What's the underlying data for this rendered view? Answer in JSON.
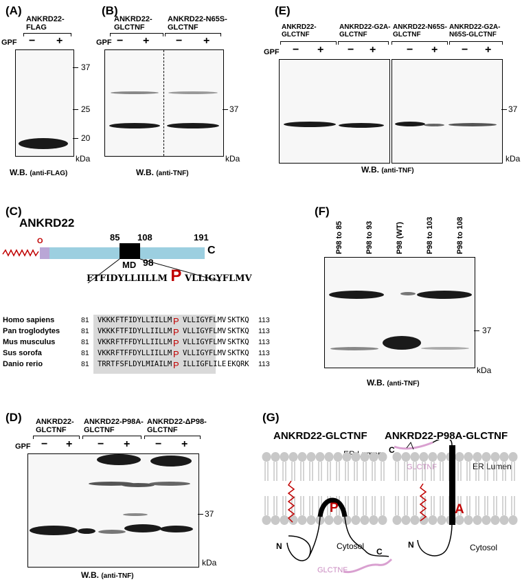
{
  "panels": {
    "A": {
      "label": "(A)",
      "header": [
        "ANKRD22-",
        "FLAG"
      ],
      "gpf": "GPF",
      "minus": "−",
      "plus": "+",
      "markers": [
        "37",
        "25",
        "20"
      ],
      "kda": "kDa",
      "wb": "W.B.",
      "wb_ab": "(anti-FLAG)"
    },
    "B": {
      "label": "(B)",
      "header1": [
        "ANKRD22-",
        "GLCTNF"
      ],
      "header2": [
        "ANKRD22-N65S-",
        "GLCTNF"
      ],
      "gpf": "GPF",
      "minus": "−",
      "plus": "+",
      "markers": [
        "37"
      ],
      "kda": "kDa",
      "wb": "W.B.",
      "wb_ab": "(anti-TNF)"
    },
    "C": {
      "label": "(C)",
      "protein": "ANKRD22",
      "pos85": "85",
      "pos108": "108",
      "pos191": "191",
      "cterm": "C",
      "md": "MD",
      "myr": "O",
      "p98": "98",
      "motif_left": "FTFIDYLLIILLM",
      "motif_p": "P",
      "motif_right": "VLLIGYFLMV",
      "rows": [
        {
          "species": "Homo sapiens",
          "start": "81",
          "pre": "VKKK",
          "mid": "FTFIDYLLIILLM",
          "p": "P",
          "post": "VLLIGYFLMV",
          "tail": "SKTKQ",
          "end": "113"
        },
        {
          "species": "Pan troglodytes",
          "start": "81",
          "pre": "VKKK",
          "mid": "FTFIDYLLIILLM",
          "p": "P",
          "post": "VLLIGYFLMV",
          "tail": "SKTKQ",
          "end": "113"
        },
        {
          "species": "Mus musculus",
          "start": "81",
          "pre": "VKKR",
          "mid": "FTFFDYLLIILLM",
          "p": "P",
          "post": "VLLIGYFLMV",
          "tail": "SKTKQ",
          "end": "113"
        },
        {
          "species": "Sus sorofa",
          "start": "81",
          "pre": "VKKR",
          "mid": "FTFFDYLLIILLM",
          "p": "P",
          "post": "VLLIGYFLMV",
          "tail": "SKTKQ",
          "end": "113"
        },
        {
          "species": "Danio rerio",
          "start": "81",
          "pre": "TRRT",
          "mid": "FSFLDYLMIAILM",
          "p": "P",
          "post": "ILLIGFLILE",
          "tail": "EKQRK",
          "end": "113"
        }
      ]
    },
    "D": {
      "label": "(D)",
      "header1": [
        "ANKRD22-",
        "GLCTNF"
      ],
      "header2": [
        "ANKRD22-P98A-",
        "GLCTNF"
      ],
      "header3": [
        "ANKRD22-ΔP98-",
        "GLCTNF"
      ],
      "gpf": "GPF",
      "minus": "−",
      "plus": "+",
      "markers": [
        "37"
      ],
      "kda": "kDa",
      "wb": "W.B.",
      "wb_ab": "(anti-TNF)"
    },
    "E": {
      "label": "(E)",
      "header1": [
        "ANKRD22-",
        "GLCTNF"
      ],
      "header2": [
        "ANKRD22-G2A-",
        "GLCTNF"
      ],
      "header3": [
        "ANKRD22-N65S-",
        "GLCTNF"
      ],
      "header4": [
        "ANKRD22-G2A-",
        "N65S-GLCTNF"
      ],
      "gpf": "GPF",
      "minus": "−",
      "plus": "+",
      "markers": [
        "37"
      ],
      "kda": "kDa",
      "wb": "W.B.",
      "wb_ab": "(anti-TNF)"
    },
    "F": {
      "label": "(F)",
      "lanes": [
        "P98 to 85",
        "P98 to 93",
        "P98 (WT)",
        "P98 to 103",
        "P98 to 108"
      ],
      "markers": [
        "37"
      ],
      "kda": "kDa",
      "wb": "W.B.",
      "wb_ab": "(anti-TNF)"
    },
    "G": {
      "label": "(G)",
      "title1": "ANKRD22-GLCTNF",
      "title2": "ANKRD22-P98A-GLCTNF",
      "er": "ER Lumen",
      "cyt": "Cytosol",
      "glctnf": "GLCTNF",
      "n": "N",
      "c": "C",
      "p": "P",
      "a": "A"
    }
  },
  "colors": {
    "red": "#c00000",
    "blue": "#9ccfe0",
    "purple": "#b9a6d6",
    "pink": "#d9a0d0",
    "head": "#c8c8c8"
  }
}
